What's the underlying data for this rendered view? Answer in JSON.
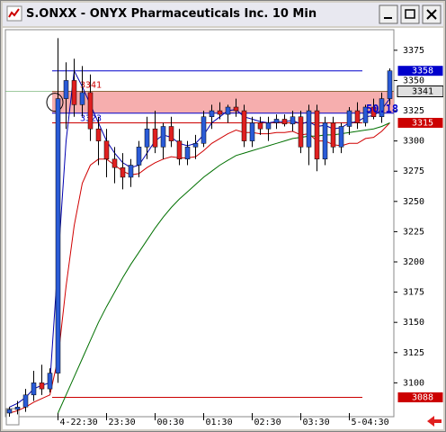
{
  "window": {
    "title": "S.ONXX - ONYX Pharmaceuticals Inc. 10 Min"
  },
  "chart_data": {
    "type": "candlestick",
    "categories": [
      null,
      null,
      null,
      null,
      null,
      null,
      "4-22:30",
      null,
      null,
      null,
      null,
      null,
      "23:30",
      null,
      null,
      null,
      null,
      null,
      "00:30",
      null,
      null,
      null,
      null,
      null,
      "01:30",
      null,
      null,
      null,
      null,
      null,
      "02:30",
      null,
      null,
      null,
      null,
      null,
      "03:30",
      null,
      null,
      null,
      null,
      null,
      "5-04:30",
      null,
      null,
      null,
      null,
      null
    ],
    "open": [
      3075,
      3078,
      3080,
      3090,
      3100,
      3095,
      3108,
      3335,
      3350,
      3330,
      3340,
      3310,
      3300,
      3285,
      3278,
      3270,
      3280,
      3295,
      3310,
      3295,
      3312,
      3300,
      3285,
      3295,
      3298,
      3320,
      3325,
      3322,
      3328,
      3325,
      3300,
      3315,
      3310,
      3315,
      3318,
      3314,
      3320,
      3295,
      3325,
      3285,
      3315,
      3295,
      3312,
      3325,
      3315,
      3328,
      3320,
      3335
    ],
    "high": [
      3080,
      3085,
      3095,
      3110,
      3115,
      3112,
      3385,
      3365,
      3368,
      3362,
      3355,
      3320,
      3310,
      3295,
      3290,
      3285,
      3300,
      3320,
      3325,
      3315,
      3320,
      3310,
      3300,
      3305,
      3325,
      3330,
      3332,
      3330,
      3335,
      3330,
      3320,
      3320,
      3320,
      3322,
      3322,
      3325,
      3325,
      3330,
      3330,
      3320,
      3320,
      3315,
      3328,
      3332,
      3330,
      3335,
      3340,
      3360
    ],
    "low": [
      3072,
      3074,
      3076,
      3085,
      3090,
      3092,
      3100,
      3310,
      3320,
      3320,
      3300,
      3280,
      3270,
      3265,
      3260,
      3262,
      3270,
      3285,
      3290,
      3285,
      3295,
      3280,
      3280,
      3285,
      3295,
      3310,
      3318,
      3315,
      3320,
      3295,
      3295,
      3305,
      3300,
      3310,
      3312,
      3308,
      3290,
      3280,
      3275,
      3280,
      3290,
      3290,
      3305,
      3310,
      3312,
      3318,
      3315,
      3330
    ],
    "close": [
      3078,
      3080,
      3090,
      3100,
      3095,
      3108,
      3335,
      3350,
      3330,
      3340,
      3310,
      3300,
      3285,
      3278,
      3270,
      3280,
      3295,
      3310,
      3295,
      3312,
      3300,
      3285,
      3295,
      3298,
      3320,
      3325,
      3322,
      3328,
      3325,
      3300,
      3315,
      3310,
      3315,
      3318,
      3314,
      3320,
      3295,
      3325,
      3285,
      3315,
      3295,
      3312,
      3325,
      3315,
      3328,
      3320,
      3335,
      3358
    ],
    "up_color": "#2a5bd7",
    "down_color": "#e02020",
    "ylim": [
      3072,
      3392
    ],
    "yticks": [
      3100,
      3125,
      3150,
      3175,
      3200,
      3225,
      3250,
      3275,
      3300,
      3325,
      3350,
      3375
    ],
    "overlays": [
      {
        "color": "#0000b0",
        "values": [
          3080,
          3083,
          3088,
          3095,
          3098,
          3100,
          3200,
          3300,
          3358,
          3345,
          3330,
          3315,
          3300,
          3290,
          3282,
          3278,
          3280,
          3290,
          3300,
          3305,
          3303,
          3298,
          3296,
          3298,
          3305,
          3315,
          3320,
          3325,
          3326,
          3320,
          3318,
          3316,
          3315,
          3316,
          3316,
          3317,
          3314,
          3316,
          3312,
          3313,
          3310,
          3311,
          3315,
          3316,
          3320,
          3321,
          3326,
          3335
        ]
      },
      {
        "color": "#d00000",
        "values": [
          3075,
          3077,
          3080,
          3084,
          3087,
          3090,
          3120,
          3180,
          3230,
          3265,
          3280,
          3285,
          3285,
          3280,
          3275,
          3272,
          3273,
          3278,
          3282,
          3285,
          3287,
          3286,
          3286,
          3287,
          3292,
          3298,
          3302,
          3306,
          3309,
          3307,
          3307,
          3306,
          3306,
          3307,
          3307,
          3308,
          3305,
          3306,
          3300,
          3300,
          3297,
          3296,
          3298,
          3298,
          3302,
          3303,
          3308,
          3315
        ]
      },
      {
        "color": "#007000",
        "values": [
          null,
          null,
          null,
          null,
          null,
          null,
          3075,
          3090,
          3105,
          3120,
          3135,
          3150,
          3163,
          3175,
          3187,
          3198,
          3208,
          3218,
          3228,
          3237,
          3245,
          3252,
          3258,
          3264,
          3270,
          3275,
          3280,
          3284,
          3288,
          3290,
          3292,
          3294,
          3296,
          3298,
          3300,
          3302,
          3303,
          3304,
          3304,
          3305,
          3305,
          3306,
          3307,
          3308,
          3309,
          3310,
          3312,
          3315
        ]
      }
    ],
    "band": {
      "low": 3323,
      "high": 3341,
      "color": "#f4a0a0"
    },
    "levels": [
      {
        "value": 3358,
        "color": "#0000cc"
      },
      {
        "value": 3315,
        "color": "#cc0000"
      },
      {
        "value": 3088,
        "color": "#cc0000"
      }
    ],
    "annotation": "50.18"
  }
}
